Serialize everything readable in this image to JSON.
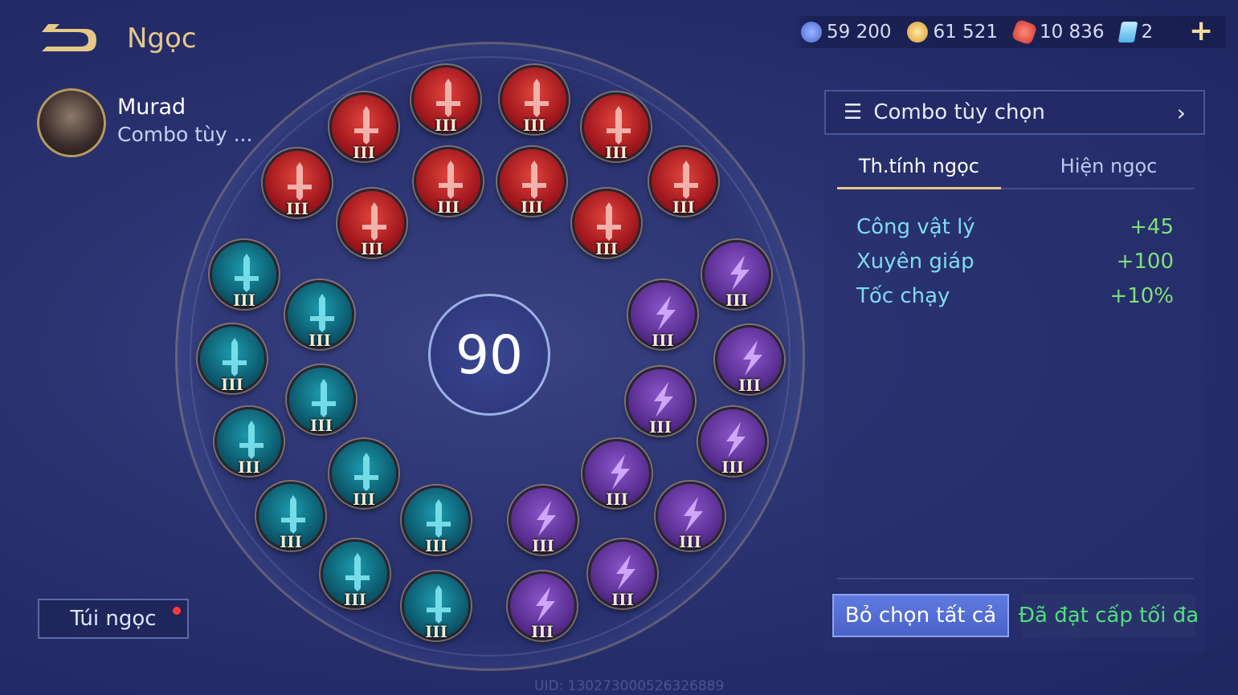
{
  "header": {
    "title": "Ngọc",
    "back_icon": "back-arrow-icon"
  },
  "currencies": [
    {
      "icon": "blue-coin-icon",
      "value": "59 200",
      "color": "#5a7fe0"
    },
    {
      "icon": "gold-coin-icon",
      "value": "61 521",
      "color": "#e8b040"
    },
    {
      "icon": "red-gem-icon",
      "value": "10 836",
      "color": "#e0463c"
    },
    {
      "icon": "card-icon",
      "value": "2",
      "color": "#7fd0f0"
    }
  ],
  "hero": {
    "name": "Murad",
    "combo": "Combo tùy ..."
  },
  "center_level": "90",
  "gems": {
    "tier": "III",
    "red": 10,
    "teal": 10,
    "purple": 10,
    "colors": {
      "red": "#c0262a",
      "teal": "#0f6d80",
      "purple": "#6a3aa6"
    }
  },
  "bag": {
    "label": "Túi ngọc",
    "has_notification": true
  },
  "uid": "UID: 130273000526326889",
  "panel": {
    "combo_label": "Combo tùy chọn",
    "tabs": [
      {
        "label": "Th.tính ngọc",
        "active": true
      },
      {
        "label": "Hiện ngọc",
        "active": false
      }
    ],
    "stats": [
      {
        "name": "Công vật lý",
        "value": "+45"
      },
      {
        "name": "Xuyên giáp",
        "value": "+100"
      },
      {
        "name": "Tốc chạy",
        "value": "+10%"
      }
    ],
    "deselect_all": "Bỏ chọn tất cả",
    "max_level": "Đã đạt cấp tối đa"
  }
}
